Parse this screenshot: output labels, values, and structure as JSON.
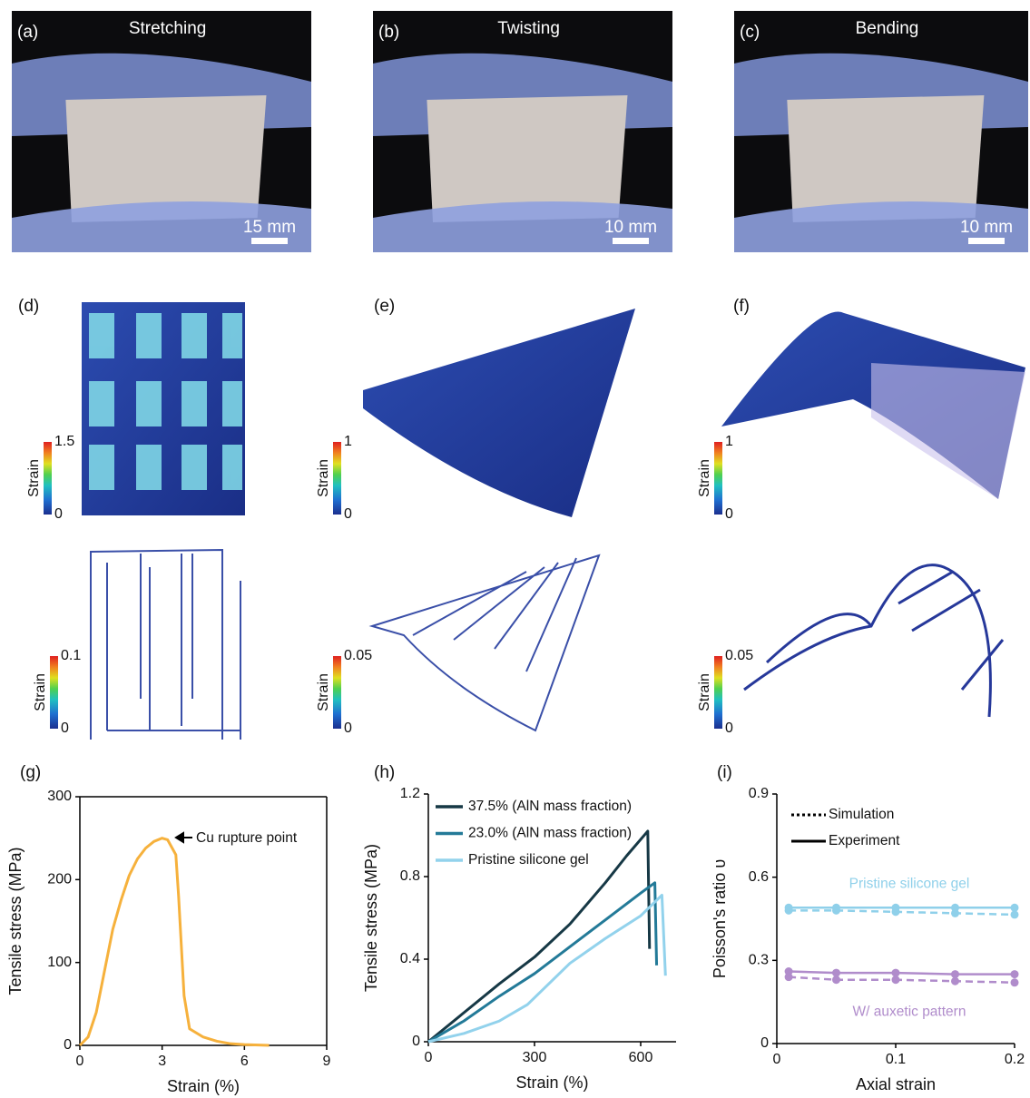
{
  "photos": [
    {
      "label": "(a)",
      "title": "Stretching",
      "scale": "15 mm"
    },
    {
      "label": "(b)",
      "title": "Twisting",
      "scale": "10 mm"
    },
    {
      "label": "(c)",
      "title": "Bending",
      "scale": "10 mm"
    }
  ],
  "simulations": [
    {
      "label": "(d)",
      "top_colorbar": {
        "label": "Strain",
        "ticks": [
          0,
          1.5
        ]
      },
      "bottom_colorbar": {
        "label": "Strain",
        "ticks": [
          0,
          0.1
        ]
      }
    },
    {
      "label": "(e)",
      "top_colorbar": {
        "label": "Strain",
        "ticks": [
          0,
          1
        ]
      },
      "bottom_colorbar": {
        "label": "Strain",
        "ticks": [
          0,
          0.05
        ]
      }
    },
    {
      "label": "(f)",
      "top_colorbar": {
        "label": "Strain",
        "ticks": [
          0,
          1
        ]
      },
      "bottom_colorbar": {
        "label": "Strain",
        "ticks": [
          0,
          0.05
        ]
      }
    }
  ],
  "chart_data": [
    {
      "type": "line",
      "panel": "(g)",
      "xlabel": "Strain (%)",
      "ylabel": "Tensile stress (MPa)",
      "xlim": [
        0,
        9
      ],
      "xticks": [
        0,
        3,
        6,
        9
      ],
      "ylim": [
        0,
        300
      ],
      "yticks": [
        0,
        100,
        200,
        300
      ],
      "annotation": "Cu rupture point",
      "series": [
        {
          "color": "#f6b13c",
          "x": [
            0,
            0.3,
            0.6,
            0.9,
            1.2,
            1.5,
            1.8,
            2.1,
            2.4,
            2.7,
            3.0,
            3.2,
            3.5,
            3.6,
            3.7,
            3.8,
            4.0,
            4.5,
            5.0,
            5.5,
            6.0,
            6.9
          ],
          "values": [
            0,
            10,
            40,
            90,
            140,
            175,
            205,
            225,
            238,
            246,
            250,
            248,
            230,
            180,
            120,
            60,
            20,
            10,
            5,
            2,
            1,
            0
          ]
        }
      ]
    },
    {
      "type": "line",
      "panel": "(h)",
      "xlabel": "Strain (%)",
      "ylabel": "Tensile stress (MPa)",
      "xlim": [
        0,
        700
      ],
      "xticks": [
        0,
        300,
        600
      ],
      "ylim": [
        0,
        1.2
      ],
      "yticks": [
        0,
        0.4,
        0.8,
        1.2
      ],
      "series": [
        {
          "name": "37.5% (AlN mass fraction)",
          "color": "#163845",
          "x": [
            0,
            100,
            200,
            300,
            400,
            500,
            560,
            620,
            625
          ],
          "values": [
            0,
            0.14,
            0.28,
            0.41,
            0.57,
            0.77,
            0.9,
            1.02,
            0.45
          ]
        },
        {
          "name": "23.0% (AlN mass fraction)",
          "color": "#237a98",
          "x": [
            0,
            100,
            200,
            300,
            400,
            500,
            600,
            640,
            645
          ],
          "values": [
            0,
            0.1,
            0.22,
            0.33,
            0.46,
            0.59,
            0.72,
            0.77,
            0.37
          ]
        },
        {
          "name": "Pristine silicone gel",
          "color": "#92d2ec",
          "x": [
            0,
            100,
            200,
            280,
            400,
            500,
            600,
            660,
            670
          ],
          "values": [
            0,
            0.04,
            0.1,
            0.18,
            0.38,
            0.5,
            0.61,
            0.71,
            0.32
          ]
        }
      ]
    },
    {
      "type": "poisson",
      "panel": "(i)",
      "xlabel": "Axial strain",
      "ylabel": "Poisson's ratio υ",
      "xlim": [
        0,
        0.2
      ],
      "xticks": [
        0,
        0.1,
        0.2
      ],
      "ylim": [
        0,
        0.9
      ],
      "yticks": [
        0,
        0.3,
        0.6,
        0.9
      ],
      "legend": [
        {
          "name": "Simulation",
          "dash": "dotted"
        },
        {
          "name": "Experiment",
          "dash": "solid"
        }
      ],
      "groups": [
        {
          "name": "Pristine silicone gel",
          "color": "#8fd0ea",
          "x": [
            0.01,
            0.05,
            0.1,
            0.15,
            0.2
          ],
          "experiment": [
            0.49,
            0.49,
            0.49,
            0.49,
            0.49
          ],
          "simulation": [
            0.48,
            0.48,
            0.475,
            0.47,
            0.465
          ]
        },
        {
          "name": "W/ auxetic pattern",
          "color": "#b08ccb",
          "x": [
            0.01,
            0.05,
            0.1,
            0.15,
            0.2
          ],
          "experiment": [
            0.26,
            0.255,
            0.255,
            0.25,
            0.25
          ],
          "simulation": [
            0.24,
            0.23,
            0.23,
            0.225,
            0.22
          ]
        }
      ]
    }
  ]
}
